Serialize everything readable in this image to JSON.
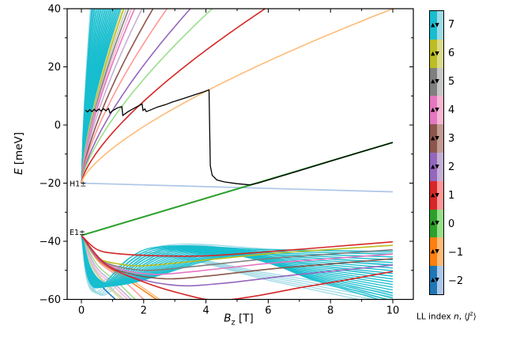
{
  "chart_data": {
    "type": "line",
    "title": "",
    "xlabel": {
      "symbol": "B",
      "sub": "z",
      "unit": " [T]"
    },
    "ylabel": {
      "symbol": "E",
      "unit": " [meV]"
    },
    "xlim": [
      -0.45,
      10.65
    ],
    "ylim": [
      -60,
      40
    ],
    "x_ticks": [
      0,
      2,
      4,
      6,
      8,
      10
    ],
    "x_minor_ticks": [
      1,
      3,
      5,
      7,
      9
    ],
    "y_ticks": [
      40,
      20,
      0,
      -20,
      -40,
      -60
    ],
    "y_minor_ticks": [
      30,
      10,
      -10,
      -30,
      -50
    ],
    "annotations": [
      {
        "text": "H1±",
        "B": 0.0,
        "E": -20.3
      },
      {
        "text": "E1±",
        "B": 0.0,
        "E": -37.0
      }
    ],
    "subband_lines": [
      {
        "name": "H1-level",
        "color": "#aec7e8",
        "width": 1.7,
        "points": [
          [
            0,
            -20
          ],
          [
            10,
            -23
          ]
        ]
      },
      {
        "name": "E1-n0-level",
        "color": "#2ca02c",
        "width": 2.0,
        "points": [
          [
            0,
            -38
          ],
          [
            10,
            -6
          ]
        ]
      }
    ],
    "conduction_fan": {
      "origin_E": -20,
      "span_E": 60,
      "power": 0.7,
      "curves": [
        {
          "name": "LL-n6-light",
          "color": "#dbdb8d",
          "B_top": 1.3
        },
        {
          "name": "LL-n6",
          "color": "#bcbd22",
          "B_top": 1.36
        },
        {
          "name": "LL-n5-light",
          "color": "#c7c7c7",
          "B_top": 1.44
        },
        {
          "name": "LL-n5",
          "color": "#7f7f7f",
          "B_top": 1.52
        },
        {
          "name": "LL-n4-light",
          "color": "#f7b6d2",
          "B_top": 1.61
        },
        {
          "name": "LL-n4",
          "color": "#e377c2",
          "B_top": 1.71
        },
        {
          "name": "LL-n2-light",
          "color": "#c5b0d5",
          "B_top": 1.95
        },
        {
          "name": "LL-n3",
          "color": "#8c564b",
          "B_top": 2.3
        },
        {
          "name": "LL-n1-light",
          "color": "#ff9896",
          "B_top": 2.75
        },
        {
          "name": "LL-n2",
          "color": "#9467bd",
          "B_top": 3.5
        },
        {
          "name": "LL-n0-light",
          "color": "#98df8a",
          "B_top": 4.2
        },
        {
          "name": "LL-n1",
          "color": "#d62728",
          "B_top": 5.9
        },
        {
          "name": "LL-n-1-light",
          "color": "#ffbb78",
          "B_top": 10.0
        }
      ],
      "bundle_dark": {
        "color": "#17becf",
        "count": 22,
        "B_top_min": 0.33,
        "B_top_max": 1.26
      },
      "bundle_light": {
        "color": "#9edae5",
        "count": 5,
        "B_top_min": 0.29,
        "B_top_max": 0.41
      }
    },
    "valence_diving": [
      {
        "name": "vLL-blue",
        "color": "#1f77b4",
        "points": [
          [
            0,
            -38
          ],
          [
            0.3,
            -50
          ],
          [
            0.7,
            -56
          ],
          [
            1.2,
            -61
          ]
        ]
      },
      {
        "name": "vLL-olive-light",
        "color": "#dbdb8d",
        "points": [
          [
            0,
            -38
          ],
          [
            0.35,
            -49
          ],
          [
            0.8,
            -55
          ],
          [
            1.38,
            -61
          ]
        ]
      },
      {
        "name": "vLL-gray-light",
        "color": "#c7c7c7",
        "points": [
          [
            0,
            -38
          ],
          [
            0.38,
            -49
          ],
          [
            0.9,
            -55.5
          ],
          [
            1.47,
            -61
          ]
        ]
      },
      {
        "name": "vLL-pink-light",
        "color": "#f7b6d2",
        "points": [
          [
            0,
            -38
          ],
          [
            0.42,
            -49
          ],
          [
            1.0,
            -55
          ],
          [
            1.58,
            -61
          ]
        ]
      },
      {
        "name": "vLL-purple-light",
        "color": "#c5b0d5",
        "points": [
          [
            0,
            -38
          ],
          [
            0.45,
            -48.5
          ],
          [
            1.05,
            -54.5
          ],
          [
            1.7,
            -61
          ]
        ]
      },
      {
        "name": "vLL-green-light",
        "color": "#98df8a",
        "points": [
          [
            0,
            -38
          ],
          [
            0.5,
            -48
          ],
          [
            1.15,
            -54
          ],
          [
            1.82,
            -61
          ]
        ]
      },
      {
        "name": "vLL-red-light",
        "color": "#ff9896",
        "points": [
          [
            0,
            -38
          ],
          [
            0.55,
            -47
          ],
          [
            1.3,
            -53
          ],
          [
            2.1,
            -61
          ]
        ]
      },
      {
        "name": "vLL-orange",
        "color": "#ff7f0e",
        "points": [
          [
            0,
            -38
          ],
          [
            0.55,
            -46.5
          ],
          [
            1.45,
            -53
          ],
          [
            2.55,
            -61
          ]
        ]
      },
      {
        "name": "vLL-orange-light",
        "color": "#ffbb78",
        "points": [
          [
            0,
            -38
          ],
          [
            0.6,
            -46
          ],
          [
            1.5,
            -52.5
          ],
          [
            2.65,
            -61
          ]
        ]
      }
    ],
    "valence_dip_rise": [
      {
        "name": "vLL-n6",
        "color": "#bcbd22",
        "points": [
          [
            0,
            -38
          ],
          [
            0.5,
            -45.5
          ],
          [
            1.2,
            -47.8
          ],
          [
            2.0,
            -48.4
          ],
          [
            3.5,
            -47
          ],
          [
            6,
            -44.3
          ],
          [
            8,
            -42.8
          ],
          [
            10,
            -41.4
          ]
        ]
      },
      {
        "name": "vLL-n5",
        "color": "#7f7f7f",
        "points": [
          [
            0,
            -38
          ],
          [
            0.55,
            -46
          ],
          [
            1.3,
            -49
          ],
          [
            2.2,
            -50
          ],
          [
            3.5,
            -48.8
          ],
          [
            6,
            -46
          ],
          [
            8,
            -44.4
          ],
          [
            10,
            -42.9
          ]
        ]
      },
      {
        "name": "vLL-n4",
        "color": "#e377c2",
        "points": [
          [
            0,
            -38
          ],
          [
            0.6,
            -46.5
          ],
          [
            1.4,
            -50
          ],
          [
            2.4,
            -51.4
          ],
          [
            3.6,
            -50.4
          ],
          [
            6,
            -47.6
          ],
          [
            8,
            -46
          ],
          [
            10,
            -44.4
          ]
        ]
      },
      {
        "name": "vLL-n3",
        "color": "#8c564b",
        "points": [
          [
            0,
            -38
          ],
          [
            0.65,
            -47
          ],
          [
            1.5,
            -51
          ],
          [
            2.7,
            -52.9
          ],
          [
            4,
            -52
          ],
          [
            6,
            -49.6
          ],
          [
            8,
            -47.8
          ],
          [
            10,
            -46
          ]
        ]
      },
      {
        "name": "vLL-n2",
        "color": "#9467bd",
        "points": [
          [
            0,
            -38
          ],
          [
            0.7,
            -47.5
          ],
          [
            1.7,
            -52.5
          ],
          [
            3.1,
            -55.2
          ],
          [
            4.5,
            -54.5
          ],
          [
            6.5,
            -52
          ],
          [
            8,
            -50.3
          ],
          [
            10,
            -48.2
          ]
        ]
      },
      {
        "name": "vLL-n1-deep",
        "color": "#d62728",
        "points": [
          [
            0,
            -38
          ],
          [
            0.8,
            -48
          ],
          [
            2,
            -54
          ],
          [
            3.2,
            -58
          ],
          [
            4.3,
            -60.3
          ],
          [
            5.5,
            -59
          ],
          [
            7,
            -56
          ],
          [
            8.5,
            -53.3
          ],
          [
            10,
            -50.4
          ]
        ]
      },
      {
        "name": "vLL-n1-shallow",
        "color": "#d62728",
        "points": [
          [
            0,
            -38
          ],
          [
            0.5,
            -42.8
          ],
          [
            1.2,
            -44.3
          ],
          [
            2.5,
            -45
          ],
          [
            4,
            -45
          ],
          [
            6,
            -43.6
          ],
          [
            8,
            -41.9
          ],
          [
            10,
            -40.2
          ]
        ]
      }
    ],
    "valence_bundle": {
      "dark": {
        "color": "#17becf",
        "count": 20,
        "start": [
          0,
          -38
        ],
        "min_first": [
          0.45,
          -56
        ],
        "min_last": [
          0.95,
          -55
        ],
        "peak_first": [
          2.2,
          -42.4
        ],
        "peak_last": [
          4.9,
          -45.1
        ],
        "end_first": -43.5,
        "end_last": -61.5
      },
      "light_sets": [
        {
          "color": "#9edae5",
          "count": 5,
          "start": [
            0,
            -38
          ],
          "min_first": [
            0.4,
            -57.5
          ],
          "min_last": [
            0.62,
            -58.5
          ],
          "peak_first": [
            2.0,
            -44
          ],
          "peak_last": [
            2.5,
            -45.5
          ],
          "end_first": -58,
          "end_last": -62.5
        },
        {
          "color": "#9edae5",
          "count": 3,
          "start": [
            0,
            -38
          ],
          "min_first": [
            0.5,
            -54
          ],
          "min_last": [
            0.7,
            -54.5
          ],
          "peak_first": [
            2.6,
            -41.6
          ],
          "peak_last": [
            3.4,
            -41.9
          ],
          "end_first": -44,
          "end_last": -52
        }
      ]
    },
    "chemical_potential": {
      "name": "mu-trace",
      "color": "#000000",
      "points": [
        [
          0.13,
          5.1
        ],
        [
          0.2,
          4.5
        ],
        [
          0.27,
          5.3
        ],
        [
          0.34,
          4.6
        ],
        [
          0.41,
          5.4
        ],
        [
          0.48,
          4.7
        ],
        [
          0.56,
          5.5
        ],
        [
          0.63,
          4.8
        ],
        [
          0.71,
          5.6
        ],
        [
          0.79,
          4.9
        ],
        [
          0.87,
          5.7
        ],
        [
          0.92,
          4.1
        ],
        [
          1.0,
          4.9
        ],
        [
          1.08,
          5.4
        ],
        [
          1.16,
          5.9
        ],
        [
          1.25,
          6.2
        ],
        [
          1.3,
          6.3
        ],
        [
          1.33,
          3.3
        ],
        [
          1.5,
          4.6
        ],
        [
          1.7,
          5.8
        ],
        [
          1.85,
          6.7
        ],
        [
          1.95,
          7.2
        ],
        [
          1.98,
          5.0
        ],
        [
          2.04,
          5.5
        ],
        [
          2.08,
          4.6
        ],
        [
          2.2,
          5.1
        ],
        [
          2.45,
          6.2
        ],
        [
          2.7,
          7.0
        ],
        [
          2.9,
          7.8
        ],
        [
          3.1,
          8.5
        ],
        [
          3.3,
          9.2
        ],
        [
          3.5,
          9.9
        ],
        [
          3.7,
          10.6
        ],
        [
          3.9,
          11.3
        ],
        [
          4.05,
          11.9
        ],
        [
          4.1,
          12.05
        ],
        [
          4.14,
          -14.0
        ],
        [
          4.2,
          -17.3
        ],
        [
          4.35,
          -18.9
        ],
        [
          4.6,
          -19.6
        ],
        [
          5.0,
          -20.2
        ],
        [
          5.4,
          -20.6
        ],
        [
          5.7,
          -19.9
        ],
        [
          6.0,
          -18.9
        ],
        [
          6.5,
          -17.3
        ],
        [
          7.0,
          -15.7
        ],
        [
          8.0,
          -12.4
        ],
        [
          9.0,
          -9.2
        ],
        [
          10.0,
          -6.0
        ]
      ]
    }
  },
  "colorbar": {
    "cells": [
      {
        "label": "7",
        "dark": "#17becf",
        "light": "#9edae5"
      },
      {
        "label": "6",
        "dark": "#bcbd22",
        "light": "#dbdb8d"
      },
      {
        "label": "5",
        "dark": "#7f7f7f",
        "light": "#c7c7c7"
      },
      {
        "label": "4",
        "dark": "#e377c2",
        "light": "#f7b6d2"
      },
      {
        "label": "3",
        "dark": "#8c564b",
        "light": "#c49c94"
      },
      {
        "label": "2",
        "dark": "#9467bd",
        "light": "#c5b0d5"
      },
      {
        "label": "1",
        "dark": "#d62728",
        "light": "#ff9896"
      },
      {
        "label": "0",
        "dark": "#2ca02c",
        "light": "#98df8a"
      },
      {
        "label": "−1",
        "dark": "#ff7f0e",
        "light": "#ffbb78"
      },
      {
        "label": "−2",
        "dark": "#1f77b4",
        "light": "#aec7e8"
      }
    ],
    "marker_up": "▲",
    "marker_down": "▼",
    "caption": {
      "prefix": "LL index ",
      "n": "n",
      "mid": ", ",
      "bra": "⟨",
      "J": "J",
      "sup": "z",
      "ket": "⟩"
    }
  }
}
